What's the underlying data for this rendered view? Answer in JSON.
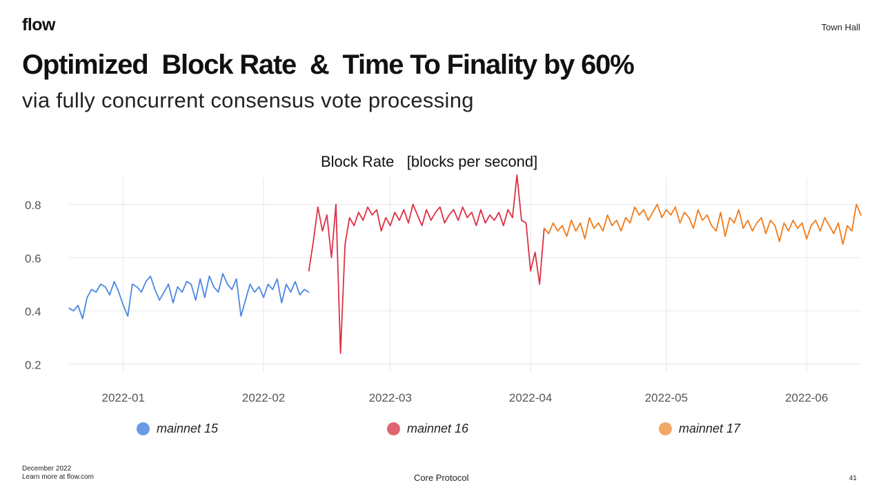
{
  "header": {
    "logo": "flow",
    "top_right": "Town Hall"
  },
  "slide": {
    "title": "Optimized  Block Rate  &  Time To Finality by 60%",
    "subtitle": "via fully concurrent consensus vote processing"
  },
  "footer": {
    "date": "December 2022",
    "link": "Learn more at flow.com",
    "center": "Core Protocol",
    "page_number": "41"
  },
  "colors": {
    "mainnet15": "#4a86e0",
    "mainnet16": "#dc2f43",
    "mainnet17": "#f07a18",
    "legend15": "#6a9ae6",
    "legend16": "#e06470",
    "legend17": "#f2a865",
    "grid": "#e6e6e6",
    "axis_text": "#555555"
  },
  "chart_data": {
    "type": "line",
    "title": "Block Rate   [blocks per second]",
    "xlabel": "",
    "ylabel": "",
    "x_range": [
      "2021-12-20",
      "2022-06-13"
    ],
    "ylim": [
      0.17,
      0.9
    ],
    "yticks": [
      0.2,
      0.4,
      0.6,
      0.8
    ],
    "ytick_labels": [
      "0.2",
      "0.4",
      "0.6",
      "0.8"
    ],
    "xticks": [
      "2022-01-01",
      "2022-02-01",
      "2022-03-01",
      "2022-04-01",
      "2022-05-01",
      "2022-06-01"
    ],
    "xtick_labels": [
      "2022-01",
      "2022-02",
      "2022-03",
      "2022-04",
      "2022-05",
      "2022-06"
    ],
    "grid": true,
    "legend_position": "bottom",
    "series": [
      {
        "name": "mainnet 15",
        "x": [
          "2021-12-20",
          "2021-12-21",
          "2021-12-22",
          "2021-12-23",
          "2021-12-24",
          "2021-12-25",
          "2021-12-26",
          "2021-12-27",
          "2021-12-28",
          "2021-12-29",
          "2021-12-30",
          "2021-12-31",
          "2022-01-01",
          "2022-01-02",
          "2022-01-03",
          "2022-01-04",
          "2022-01-05",
          "2022-01-06",
          "2022-01-07",
          "2022-01-08",
          "2022-01-09",
          "2022-01-10",
          "2022-01-11",
          "2022-01-12",
          "2022-01-13",
          "2022-01-14",
          "2022-01-15",
          "2022-01-16",
          "2022-01-17",
          "2022-01-18",
          "2022-01-19",
          "2022-01-20",
          "2022-01-21",
          "2022-01-22",
          "2022-01-23",
          "2022-01-24",
          "2022-01-25",
          "2022-01-26",
          "2022-01-27",
          "2022-01-28",
          "2022-01-29",
          "2022-01-30",
          "2022-01-31",
          "2022-02-01",
          "2022-02-02",
          "2022-02-03",
          "2022-02-04",
          "2022-02-05",
          "2022-02-06",
          "2022-02-07",
          "2022-02-08",
          "2022-02-09",
          "2022-02-10",
          "2022-02-11"
        ],
        "values": [
          0.41,
          0.4,
          0.42,
          0.37,
          0.45,
          0.48,
          0.47,
          0.5,
          0.49,
          0.46,
          0.51,
          0.47,
          0.42,
          0.38,
          0.5,
          0.49,
          0.47,
          0.51,
          0.53,
          0.48,
          0.44,
          0.47,
          0.5,
          0.43,
          0.49,
          0.47,
          0.51,
          0.5,
          0.44,
          0.52,
          0.45,
          0.53,
          0.49,
          0.47,
          0.54,
          0.5,
          0.48,
          0.52,
          0.38,
          0.44,
          0.5,
          0.47,
          0.49,
          0.45,
          0.5,
          0.48,
          0.52,
          0.43,
          0.5,
          0.47,
          0.51,
          0.46,
          0.48,
          0.47
        ]
      },
      {
        "name": "mainnet 16",
        "x": [
          "2022-02-11",
          "2022-02-12",
          "2022-02-13",
          "2022-02-14",
          "2022-02-15",
          "2022-02-16",
          "2022-02-17",
          "2022-02-18",
          "2022-02-19",
          "2022-02-20",
          "2022-02-21",
          "2022-02-22",
          "2022-02-23",
          "2022-02-24",
          "2022-02-25",
          "2022-02-26",
          "2022-02-27",
          "2022-02-28",
          "2022-03-01",
          "2022-03-02",
          "2022-03-03",
          "2022-03-04",
          "2022-03-05",
          "2022-03-06",
          "2022-03-07",
          "2022-03-08",
          "2022-03-09",
          "2022-03-10",
          "2022-03-11",
          "2022-03-12",
          "2022-03-13",
          "2022-03-14",
          "2022-03-15",
          "2022-03-16",
          "2022-03-17",
          "2022-03-18",
          "2022-03-19",
          "2022-03-20",
          "2022-03-21",
          "2022-03-22",
          "2022-03-23",
          "2022-03-24",
          "2022-03-25",
          "2022-03-26",
          "2022-03-27",
          "2022-03-28",
          "2022-03-29",
          "2022-03-30",
          "2022-03-31",
          "2022-04-01",
          "2022-04-02",
          "2022-04-03",
          "2022-04-04"
        ],
        "values": [
          0.55,
          0.66,
          0.79,
          0.7,
          0.76,
          0.6,
          0.8,
          0.24,
          0.65,
          0.75,
          0.72,
          0.77,
          0.74,
          0.79,
          0.76,
          0.78,
          0.7,
          0.75,
          0.72,
          0.77,
          0.74,
          0.78,
          0.73,
          0.8,
          0.76,
          0.72,
          0.78,
          0.74,
          0.77,
          0.79,
          0.73,
          0.76,
          0.78,
          0.74,
          0.79,
          0.75,
          0.77,
          0.72,
          0.78,
          0.73,
          0.76,
          0.74,
          0.77,
          0.72,
          0.78,
          0.75,
          0.91,
          0.74,
          0.73,
          0.55,
          0.62,
          0.5,
          0.71
        ]
      },
      {
        "name": "mainnet 17",
        "x": [
          "2022-04-04",
          "2022-04-05",
          "2022-04-06",
          "2022-04-07",
          "2022-04-08",
          "2022-04-09",
          "2022-04-10",
          "2022-04-11",
          "2022-04-12",
          "2022-04-13",
          "2022-04-14",
          "2022-04-15",
          "2022-04-16",
          "2022-04-17",
          "2022-04-18",
          "2022-04-19",
          "2022-04-20",
          "2022-04-21",
          "2022-04-22",
          "2022-04-23",
          "2022-04-24",
          "2022-04-25",
          "2022-04-26",
          "2022-04-27",
          "2022-04-28",
          "2022-04-29",
          "2022-04-30",
          "2022-05-01",
          "2022-05-02",
          "2022-05-03",
          "2022-05-04",
          "2022-05-05",
          "2022-05-06",
          "2022-05-07",
          "2022-05-08",
          "2022-05-09",
          "2022-05-10",
          "2022-05-11",
          "2022-05-12",
          "2022-05-13",
          "2022-05-14",
          "2022-05-15",
          "2022-05-16",
          "2022-05-17",
          "2022-05-18",
          "2022-05-19",
          "2022-05-20",
          "2022-05-21",
          "2022-05-22",
          "2022-05-23",
          "2022-05-24",
          "2022-05-25",
          "2022-05-26",
          "2022-05-27",
          "2022-05-28",
          "2022-05-29",
          "2022-05-30",
          "2022-05-31",
          "2022-06-01",
          "2022-06-02",
          "2022-06-03",
          "2022-06-04",
          "2022-06-05",
          "2022-06-06",
          "2022-06-07",
          "2022-06-08",
          "2022-06-09",
          "2022-06-10",
          "2022-06-11",
          "2022-06-12",
          "2022-06-13"
        ],
        "values": [
          0.71,
          0.69,
          0.73,
          0.7,
          0.72,
          0.68,
          0.74,
          0.7,
          0.73,
          0.67,
          0.75,
          0.71,
          0.73,
          0.7,
          0.76,
          0.72,
          0.74,
          0.7,
          0.75,
          0.73,
          0.79,
          0.76,
          0.78,
          0.74,
          0.77,
          0.8,
          0.75,
          0.78,
          0.76,
          0.79,
          0.73,
          0.77,
          0.75,
          0.71,
          0.78,
          0.74,
          0.76,
          0.72,
          0.7,
          0.77,
          0.68,
          0.75,
          0.73,
          0.78,
          0.71,
          0.74,
          0.7,
          0.73,
          0.75,
          0.69,
          0.74,
          0.72,
          0.66,
          0.73,
          0.7,
          0.74,
          0.71,
          0.73,
          0.67,
          0.72,
          0.74,
          0.7,
          0.75,
          0.72,
          0.69,
          0.73,
          0.65,
          0.72,
          0.7,
          0.8,
          0.76
        ]
      }
    ]
  }
}
